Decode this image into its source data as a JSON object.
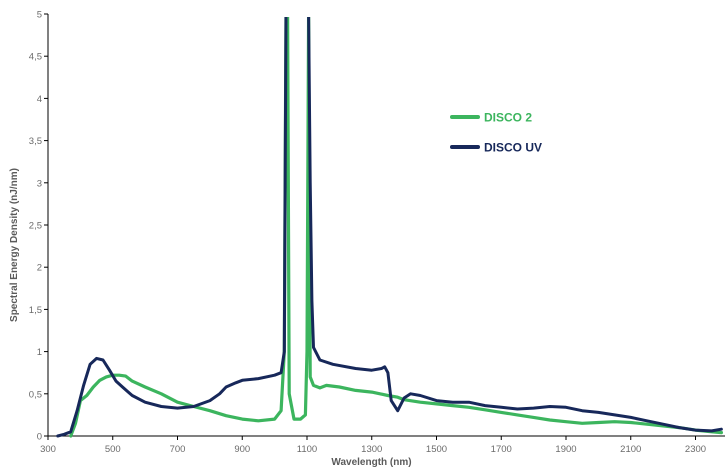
{
  "chart_data": {
    "type": "line",
    "title": "",
    "xlabel": "Wavelength (nm)",
    "ylabel": "Spectral Energy Density (nJ/nm)",
    "xlim": [
      300,
      2380
    ],
    "ylim": [
      0,
      5
    ],
    "x_ticks": [
      300,
      500,
      700,
      900,
      1100,
      1300,
      1500,
      1700,
      1900,
      2100,
      2300
    ],
    "x_tick_labels": [
      "300",
      "500",
      "700",
      "900",
      "1100",
      "1300",
      "1500",
      "1700",
      "1900",
      "2100",
      "2300"
    ],
    "y_ticks": [
      0,
      0.5,
      1,
      1.5,
      2,
      2.5,
      3,
      3.5,
      4,
      4.5,
      5
    ],
    "y_tick_labels": [
      "0",
      "0,5",
      "1",
      "1,5",
      "2",
      "2,5",
      "3",
      "3,5",
      "4",
      "4,5",
      "5"
    ],
    "grid": false,
    "legend_position": "upper-right",
    "series": [
      {
        "name": "DISCO 2",
        "color": "#3cb55e",
        "x": [
          370,
          385,
          400,
          420,
          440,
          460,
          480,
          500,
          520,
          540,
          560,
          600,
          650,
          700,
          750,
          800,
          850,
          900,
          950,
          1000,
          1020,
          1030,
          1035,
          1040,
          1045,
          1060,
          1080,
          1095,
          1100,
          1105,
          1110,
          1120,
          1140,
          1160,
          1200,
          1250,
          1300,
          1350,
          1380,
          1400,
          1450,
          1500,
          1550,
          1600,
          1650,
          1700,
          1750,
          1800,
          1850,
          1900,
          1950,
          2000,
          2050,
          2100,
          2150,
          2200,
          2250,
          2300,
          2350,
          2380
        ],
        "y": [
          0,
          0.15,
          0.42,
          0.48,
          0.58,
          0.66,
          0.7,
          0.72,
          0.72,
          0.71,
          0.65,
          0.58,
          0.5,
          0.4,
          0.35,
          0.3,
          0.24,
          0.2,
          0.18,
          0.2,
          0.3,
          1.0,
          5.0,
          5.0,
          0.5,
          0.2,
          0.2,
          0.25,
          1.0,
          5.0,
          0.7,
          0.6,
          0.57,
          0.6,
          0.58,
          0.54,
          0.52,
          0.48,
          0.46,
          0.43,
          0.4,
          0.38,
          0.36,
          0.34,
          0.31,
          0.28,
          0.25,
          0.22,
          0.19,
          0.17,
          0.15,
          0.16,
          0.17,
          0.16,
          0.14,
          0.12,
          0.1,
          0.07,
          0.05,
          0.04
        ]
      },
      {
        "name": "DISCO UV",
        "color": "#17285a",
        "x": [
          330,
          350,
          370,
          390,
          410,
          430,
          450,
          470,
          490,
          510,
          530,
          560,
          600,
          650,
          700,
          750,
          800,
          830,
          850,
          880,
          900,
          950,
          1000,
          1020,
          1030,
          1035,
          1040,
          1045,
          1060,
          1080,
          1095,
          1100,
          1105,
          1110,
          1115,
          1120,
          1140,
          1180,
          1250,
          1300,
          1330,
          1340,
          1350,
          1360,
          1380,
          1400,
          1420,
          1450,
          1500,
          1550,
          1600,
          1650,
          1700,
          1750,
          1800,
          1850,
          1900,
          1950,
          2000,
          2050,
          2100,
          2150,
          2200,
          2250,
          2300,
          2350,
          2380
        ],
        "y": [
          0,
          0.02,
          0.05,
          0.3,
          0.6,
          0.85,
          0.92,
          0.9,
          0.78,
          0.65,
          0.58,
          0.48,
          0.4,
          0.35,
          0.33,
          0.35,
          0.42,
          0.5,
          0.58,
          0.63,
          0.66,
          0.68,
          0.72,
          0.75,
          1.0,
          5.0,
          5.0,
          5.0,
          5.0,
          5.0,
          5.0,
          5.0,
          5.0,
          3.0,
          1.6,
          1.05,
          0.9,
          0.85,
          0.8,
          0.78,
          0.8,
          0.82,
          0.75,
          0.42,
          0.3,
          0.45,
          0.5,
          0.48,
          0.42,
          0.4,
          0.4,
          0.36,
          0.34,
          0.32,
          0.33,
          0.35,
          0.34,
          0.3,
          0.28,
          0.25,
          0.22,
          0.18,
          0.14,
          0.1,
          0.07,
          0.06,
          0.08
        ]
      }
    ]
  }
}
